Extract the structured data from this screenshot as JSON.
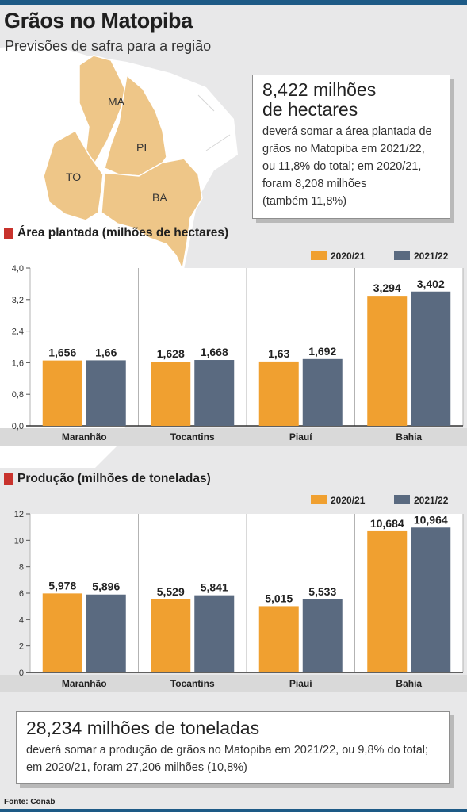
{
  "header": {
    "title": "Grãos no Matopiba",
    "subtitle": "Previsões de safra para a região"
  },
  "map": {
    "states": [
      "MA",
      "PI",
      "TO",
      "BA"
    ],
    "fill_color": "#eec688",
    "background_color": "#ffffff"
  },
  "callout_top": {
    "headline_1": "8,422 milhões",
    "headline_2": "de hectares",
    "lines": [
      "deverá somar a área plantada de",
      "grãos no Matopiba em 2021/22,",
      "ou 11,8% do total; em 2020/21,",
      "foram 8,208 milhões",
      "(também 11,8%)"
    ]
  },
  "callout_bottom": {
    "headline": "28,234 milhões de toneladas",
    "lines": [
      "deverá somar a produção de grãos no Matopiba em 2021/22, ou 9,8% do total;",
      "em 2020/21, foram 27,206 milhões (10,8%)"
    ]
  },
  "colors": {
    "series_2020": "#f0a030",
    "series_2021": "#5a6a80",
    "marker": "#c8322c",
    "accent": "#1d5a86"
  },
  "chart_data": [
    {
      "type": "bar",
      "title": "Área plantada (milhões de hectares)",
      "categories": [
        "Maranhão",
        "Tocantins",
        "Piauí",
        "Bahia"
      ],
      "series": [
        {
          "name": "2020/21",
          "values": [
            1.656,
            1.628,
            1.63,
            3.294
          ],
          "labels": [
            "1,656",
            "1,628",
            "1,63",
            "3,294"
          ]
        },
        {
          "name": "2021/22",
          "values": [
            1.66,
            1.668,
            1.692,
            3.402
          ],
          "labels": [
            "1,66",
            "1,668",
            "1,692",
            "3,402"
          ]
        }
      ],
      "yticks": [
        "0,0",
        "0,8",
        "1,6",
        "2,4",
        "3,2",
        "4,0"
      ],
      "ylim": [
        0,
        4.0
      ],
      "legend": "top-right",
      "grid": false
    },
    {
      "type": "bar",
      "title": "Produção (milhões de toneladas)",
      "categories": [
        "Maranhão",
        "Tocantins",
        "Piauí",
        "Bahia"
      ],
      "series": [
        {
          "name": "2020/21",
          "values": [
            5.978,
            5.529,
            5.015,
            10.684
          ],
          "labels": [
            "5,978",
            "5,529",
            "5,015",
            "10,684"
          ]
        },
        {
          "name": "2021/22",
          "values": [
            5.896,
            5.841,
            5.533,
            10.964
          ],
          "labels": [
            "5,896",
            "5,841",
            "5,533",
            "10,964"
          ]
        }
      ],
      "yticks": [
        "0",
        "2",
        "4",
        "6",
        "8",
        "10",
        "12"
      ],
      "ylim": [
        0,
        12
      ],
      "legend": "top-right",
      "grid": false
    }
  ],
  "source": "Fonte: Conab"
}
